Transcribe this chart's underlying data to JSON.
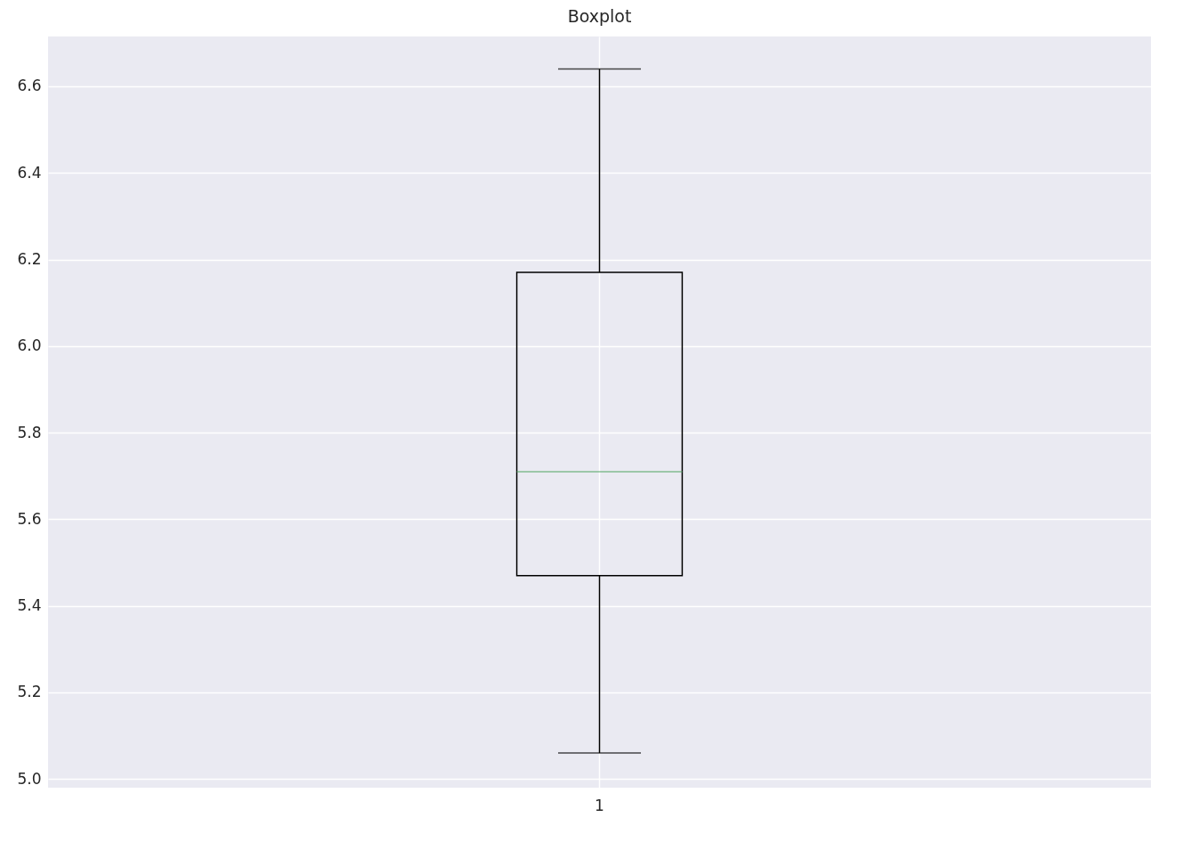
{
  "chart_data": {
    "type": "box",
    "title": "Boxplot",
    "categories": [
      "1"
    ],
    "boxes": [
      {
        "low": 5.06,
        "q1": 5.47,
        "median": 5.71,
        "q3": 6.17,
        "high": 6.64
      }
    ],
    "ylim": [
      4.98,
      6.715
    ],
    "yticks": [
      {
        "value": 5,
        "label": "5.0"
      },
      5.2,
      5.4,
      5.6,
      5.8,
      {
        "value": 6,
        "label": "6.0"
      },
      6.2,
      6.4,
      6.6
    ],
    "grid": true
  }
}
